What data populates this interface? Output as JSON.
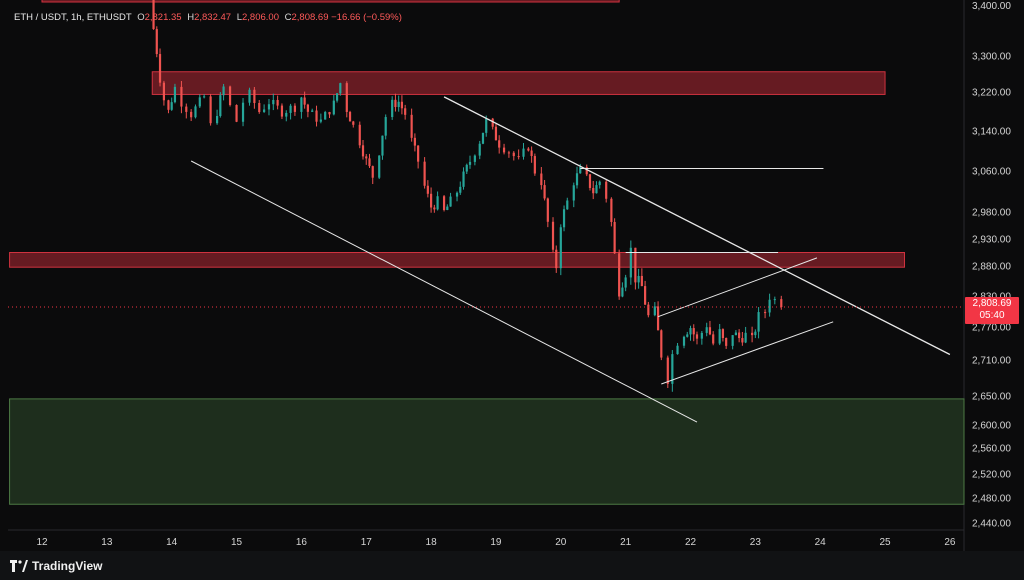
{
  "legend": {
    "symbol": "ETH / USDT, 1h, ETHUSDT",
    "open_label": "O",
    "open": "2,821.35",
    "high_label": "H",
    "high": "2,832.47",
    "low_label": "L",
    "low": "2,806.00",
    "close_label": "C",
    "close": "2,808.69",
    "change": "−16.66 (−0.59%)"
  },
  "price_tag": {
    "price": "2,808.69",
    "countdown": "05:40"
  },
  "footer": {
    "brand": "TradingView",
    "logo_icon": "tradingview-logo-icon"
  },
  "colors": {
    "up": "#26a69a",
    "down": "#ef5350",
    "supply_zone": "#b22a35",
    "demand_zone": "#2f4d2c",
    "trendline": "#e8e8e8"
  },
  "chart_data": {
    "type": "candlestick",
    "timeframe": "1h",
    "x_ticks": [
      "12",
      "13",
      "14",
      "15",
      "16",
      "17",
      "18",
      "19",
      "20",
      "21",
      "22",
      "23",
      "24",
      "25",
      "26"
    ],
    "y_ticks": [
      "3,300.00",
      "3,220.00",
      "3,140.00",
      "3,060.00",
      "2,980.00",
      "2,930.00",
      "2,880.00",
      "2,830.00",
      "2,770.00",
      "2,710.00",
      "2,650.00",
      "2,600.00",
      "2,560.00",
      "2,520.00",
      "2,480.00",
      "2,440.00"
    ],
    "last_price": 2808.69,
    "close_path": [
      [
        13.68,
        3400
      ],
      [
        13.72,
        3360
      ],
      [
        13.77,
        3310
      ],
      [
        13.82,
        3250
      ],
      [
        13.88,
        3205
      ],
      [
        13.95,
        3180
      ],
      [
        14.05,
        3230
      ],
      [
        14.15,
        3200
      ],
      [
        14.3,
        3175
      ],
      [
        14.5,
        3210
      ],
      [
        14.6,
        3150
      ],
      [
        14.7,
        3180
      ],
      [
        14.8,
        3230
      ],
      [
        14.9,
        3190
      ],
      [
        15.0,
        3160
      ],
      [
        15.1,
        3200
      ],
      [
        15.2,
        3215
      ],
      [
        15.35,
        3180
      ],
      [
        15.5,
        3200
      ],
      [
        15.7,
        3180
      ],
      [
        15.9,
        3190
      ],
      [
        16.0,
        3210
      ],
      [
        16.1,
        3180
      ],
      [
        16.3,
        3160
      ],
      [
        16.5,
        3195
      ],
      [
        16.6,
        3240
      ],
      [
        16.7,
        3185
      ],
      [
        16.8,
        3150
      ],
      [
        16.9,
        3120
      ],
      [
        17.0,
        3080
      ],
      [
        17.1,
        3050
      ],
      [
        17.2,
        3100
      ],
      [
        17.3,
        3170
      ],
      [
        17.4,
        3195
      ],
      [
        17.5,
        3200
      ],
      [
        17.6,
        3175
      ],
      [
        17.7,
        3120
      ],
      [
        17.8,
        3080
      ],
      [
        17.9,
        3030
      ],
      [
        18.0,
        2990
      ],
      [
        18.1,
        3000
      ],
      [
        18.2,
        2980
      ],
      [
        18.3,
        3000
      ],
      [
        18.4,
        3020
      ],
      [
        18.5,
        3050
      ],
      [
        18.6,
        3080
      ],
      [
        18.75,
        3120
      ],
      [
        18.85,
        3160
      ],
      [
        18.95,
        3140
      ],
      [
        19.05,
        3115
      ],
      [
        19.2,
        3100
      ],
      [
        19.35,
        3080
      ],
      [
        19.5,
        3110
      ],
      [
        19.6,
        3060
      ],
      [
        19.7,
        3040
      ],
      [
        19.8,
        2960
      ],
      [
        19.88,
        2900
      ],
      [
        19.93,
        2880
      ],
      [
        20.0,
        2960
      ],
      [
        20.1,
        3000
      ],
      [
        20.2,
        3040
      ],
      [
        20.3,
        3060
      ],
      [
        20.4,
        3045
      ],
      [
        20.5,
        3020
      ],
      [
        20.6,
        3040
      ],
      [
        20.7,
        3010
      ],
      [
        20.78,
        2960
      ],
      [
        20.83,
        2900
      ],
      [
        20.9,
        2840
      ],
      [
        21.0,
        2870
      ],
      [
        21.08,
        2910
      ],
      [
        21.15,
        2860
      ],
      [
        21.25,
        2845
      ],
      [
        21.35,
        2790
      ],
      [
        21.45,
        2800
      ],
      [
        21.55,
        2720
      ],
      [
        21.65,
        2680
      ],
      [
        21.72,
        2720
      ],
      [
        21.8,
        2745
      ],
      [
        21.9,
        2760
      ],
      [
        22.0,
        2770
      ],
      [
        22.1,
        2745
      ],
      [
        22.25,
        2775
      ],
      [
        22.35,
        2740
      ],
      [
        22.45,
        2760
      ],
      [
        22.55,
        2730
      ],
      [
        22.65,
        2760
      ],
      [
        22.75,
        2750
      ],
      [
        22.85,
        2755
      ],
      [
        22.95,
        2745
      ],
      [
        23.05,
        2790
      ],
      [
        23.15,
        2800
      ],
      [
        23.22,
        2830
      ],
      [
        23.3,
        2822
      ],
      [
        23.4,
        2808.69
      ]
    ],
    "zones": [
      {
        "name": "supply-zone-top",
        "kind": "supply",
        "from": 12.0,
        "to": 20.9,
        "price_top": 3450,
        "price_bottom": 3420
      },
      {
        "name": "supply-zone-upper",
        "kind": "supply",
        "from": 13.7,
        "to": 25.0,
        "price_top": 3265,
        "price_bottom": 3215
      },
      {
        "name": "supply-zone-mid",
        "kind": "supply",
        "from": 11.5,
        "to": 25.3,
        "price_top": 2905,
        "price_bottom": 2878
      },
      {
        "name": "demand-zone",
        "kind": "demand",
        "from": 11.5,
        "to": 26.3,
        "price_top": 2645,
        "price_bottom": 2470
      }
    ],
    "lines": [
      {
        "name": "upper-trendline",
        "from": [
          18.2,
          3210
        ],
        "to": [
          26.0,
          2720
        ]
      },
      {
        "name": "lower-channel-line",
        "from": [
          14.3,
          3080
        ],
        "to": [
          22.1,
          2605
        ]
      },
      {
        "name": "rising-channel-top",
        "from": [
          21.5,
          2790
        ],
        "to": [
          23.95,
          2895
        ]
      },
      {
        "name": "rising-channel-bottom",
        "from": [
          21.55,
          2670
        ],
        "to": [
          24.2,
          2780
        ]
      },
      {
        "name": "horizontal-3060",
        "from": [
          20.3,
          3065
        ],
        "to": [
          24.05,
          3065
        ]
      },
      {
        "name": "horizontal-2905",
        "from": [
          21.0,
          2905
        ],
        "to": [
          23.35,
          2905
        ]
      }
    ]
  }
}
